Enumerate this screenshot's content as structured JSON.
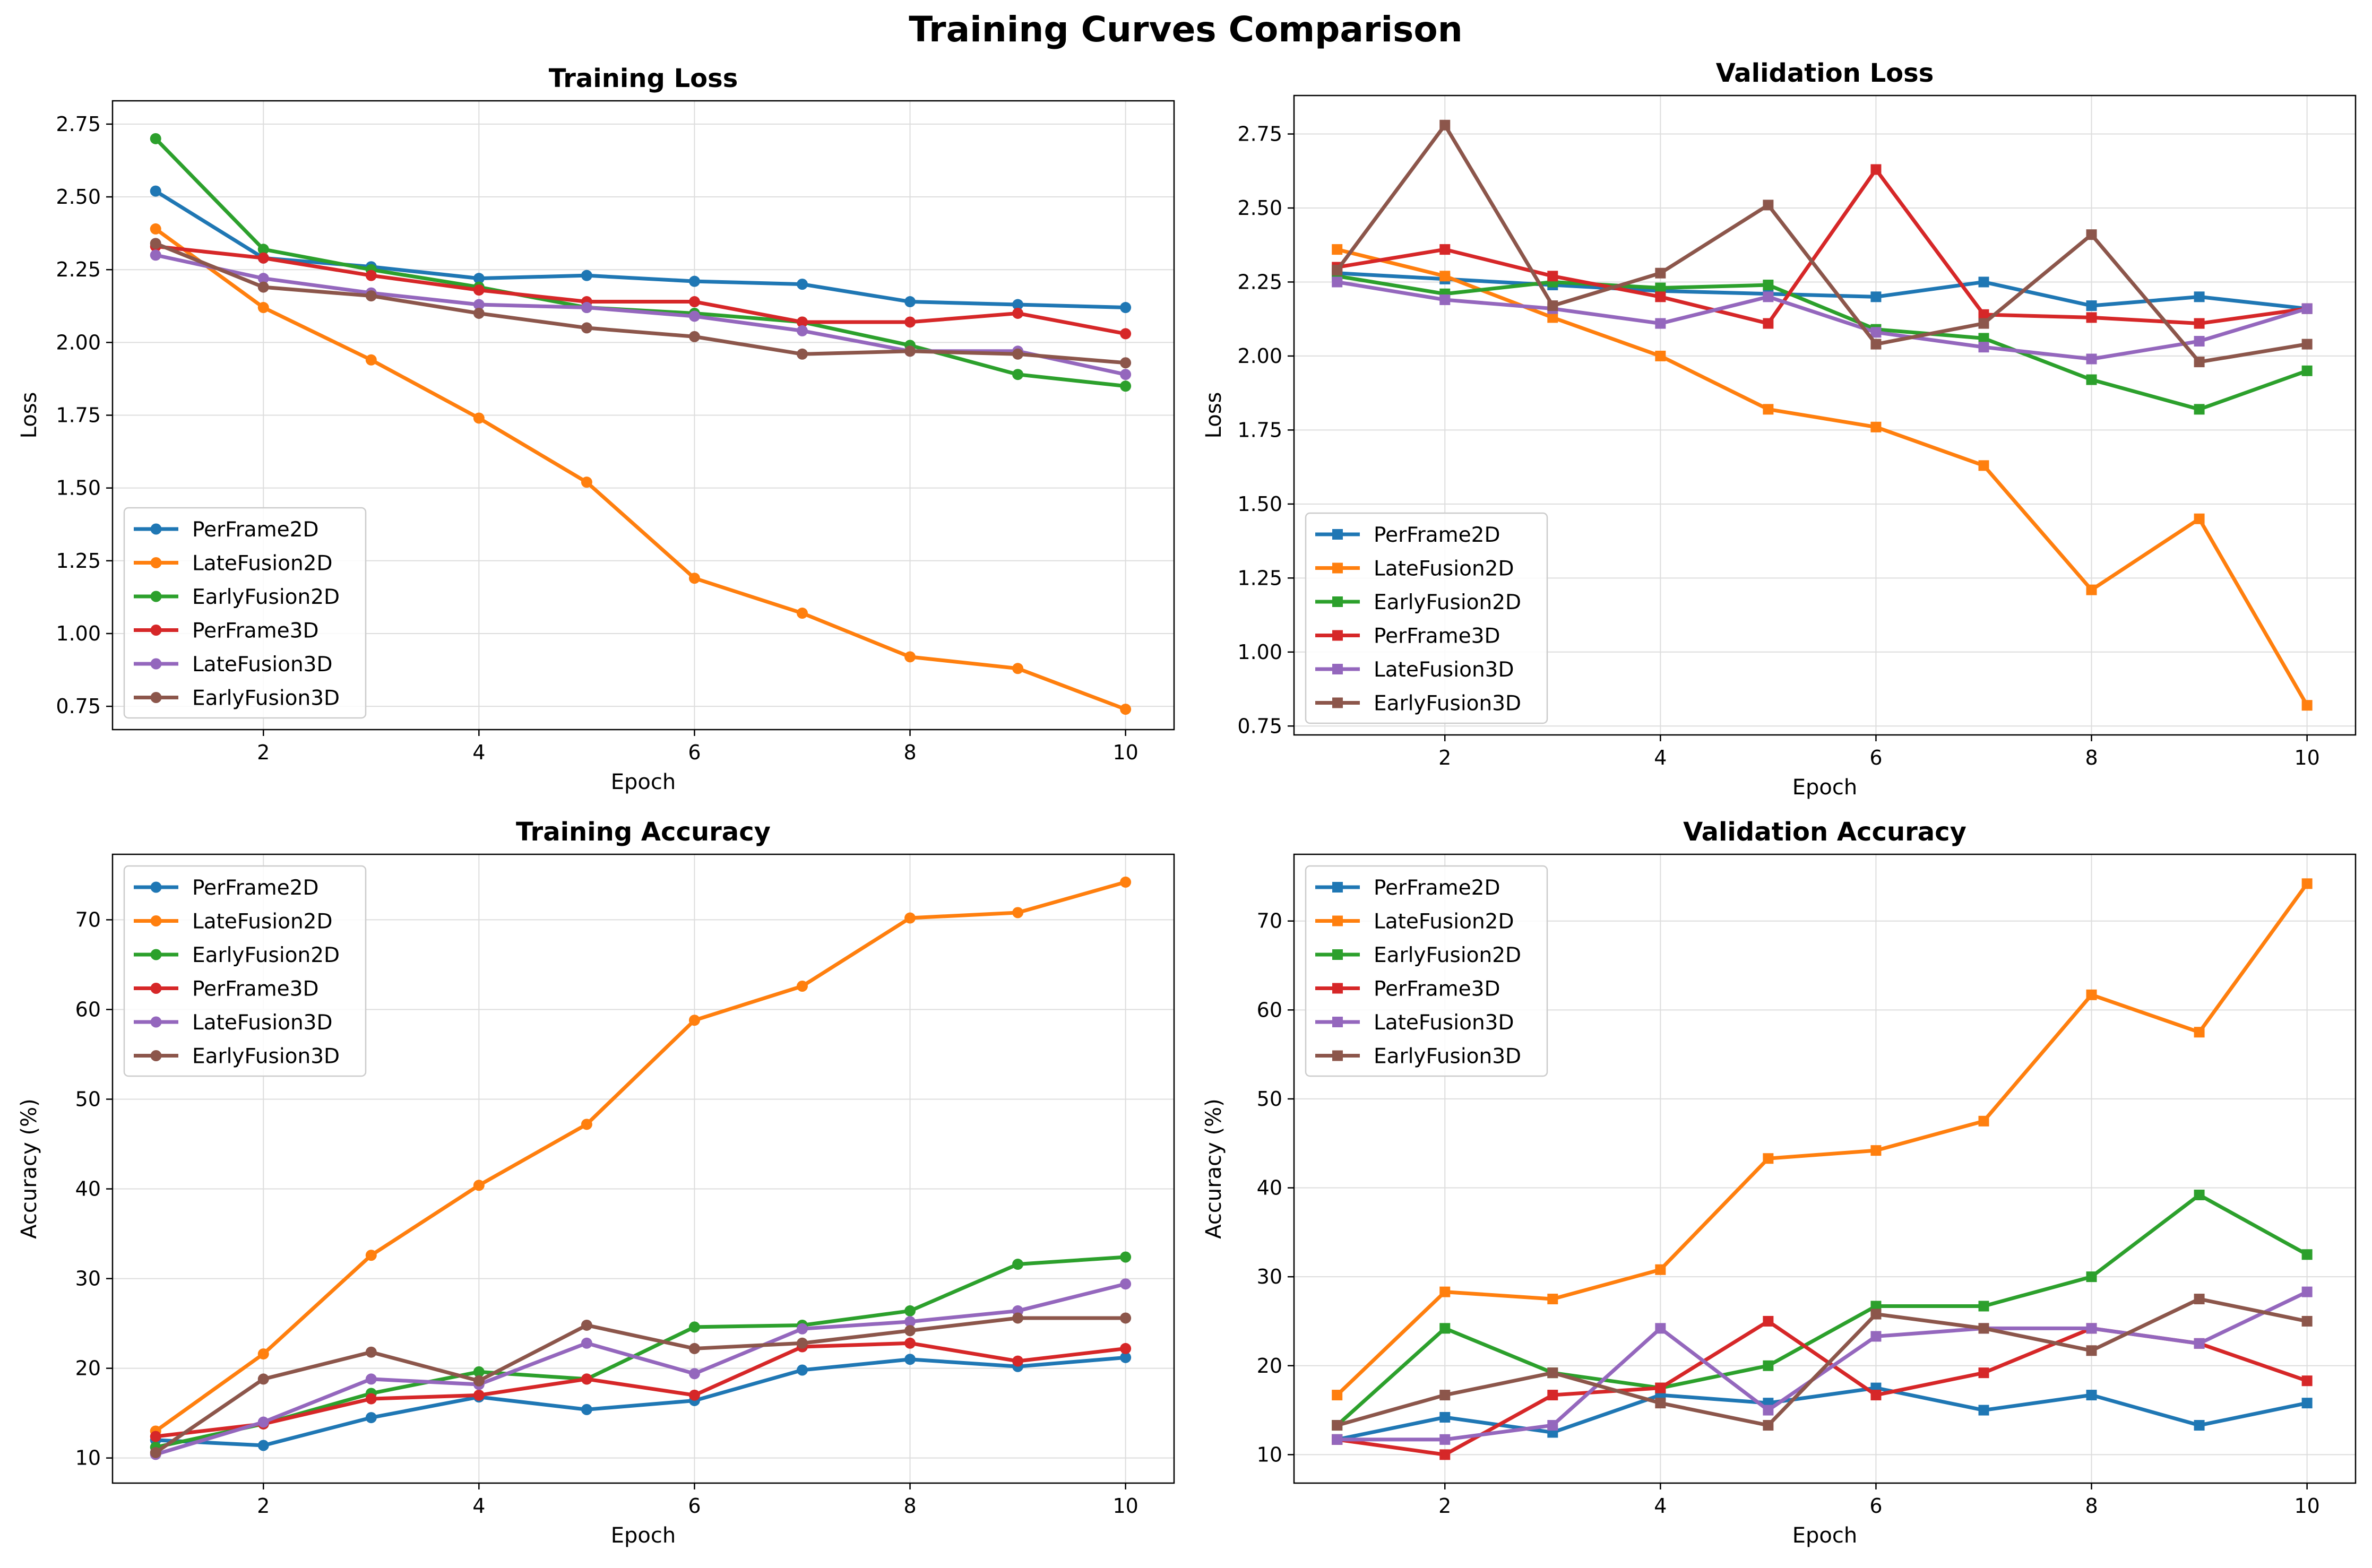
{
  "figure": {
    "title": "Training Curves Comparison"
  },
  "colors": {
    "PerFrame2D": "#1f77b4",
    "LateFusion2D": "#ff7f0e",
    "EarlyFusion2D": "#2ca02c",
    "PerFrame3D": "#d62728",
    "LateFusion3D": "#9467bd",
    "EarlyFusion3D": "#8c564b"
  },
  "chart_data": [
    {
      "type": "line",
      "title": "Training Loss",
      "xlabel": "Epoch",
      "ylabel": "Loss",
      "marker": "circle",
      "x": [
        1,
        2,
        3,
        4,
        5,
        6,
        7,
        8,
        9,
        10
      ],
      "xlim": [
        0.6,
        10.45
      ],
      "ylim": [
        0.67,
        2.83
      ],
      "xticks": [
        2,
        4,
        6,
        8,
        10
      ],
      "yticks": [
        0.75,
        1.0,
        1.25,
        1.5,
        1.75,
        2.0,
        2.25,
        2.5,
        2.75
      ],
      "grid": true,
      "legend": "lower left",
      "series": [
        {
          "name": "PerFrame2D",
          "values": [
            2.52,
            2.29,
            2.26,
            2.22,
            2.23,
            2.21,
            2.2,
            2.14,
            2.13,
            2.12
          ]
        },
        {
          "name": "LateFusion2D",
          "values": [
            2.39,
            2.12,
            1.94,
            1.74,
            1.52,
            1.19,
            1.07,
            0.92,
            0.88,
            0.74
          ]
        },
        {
          "name": "EarlyFusion2D",
          "values": [
            2.7,
            2.32,
            2.25,
            2.19,
            2.12,
            2.1,
            2.07,
            1.99,
            1.89,
            1.85
          ]
        },
        {
          "name": "PerFrame3D",
          "values": [
            2.33,
            2.29,
            2.23,
            2.18,
            2.14,
            2.14,
            2.07,
            2.07,
            2.1,
            2.03
          ]
        },
        {
          "name": "LateFusion3D",
          "values": [
            2.3,
            2.22,
            2.17,
            2.13,
            2.12,
            2.09,
            2.04,
            1.97,
            1.97,
            1.89
          ]
        },
        {
          "name": "EarlyFusion3D",
          "values": [
            2.34,
            2.19,
            2.16,
            2.1,
            2.05,
            2.02,
            1.96,
            1.97,
            1.96,
            1.93
          ]
        }
      ]
    },
    {
      "type": "line",
      "title": "Validation Loss",
      "xlabel": "Epoch",
      "ylabel": "Loss",
      "marker": "square",
      "x": [
        1,
        2,
        3,
        4,
        5,
        6,
        7,
        8,
        9,
        10
      ],
      "xlim": [
        0.6,
        10.45
      ],
      "ylim": [
        0.72,
        2.88
      ],
      "xticks": [
        2,
        4,
        6,
        8,
        10
      ],
      "yticks": [
        0.75,
        1.0,
        1.25,
        1.5,
        1.75,
        2.0,
        2.25,
        2.5,
        2.75
      ],
      "grid": true,
      "legend": "lower left",
      "series": [
        {
          "name": "PerFrame2D",
          "values": [
            2.28,
            2.26,
            2.24,
            2.22,
            2.21,
            2.2,
            2.25,
            2.17,
            2.2,
            2.16
          ]
        },
        {
          "name": "LateFusion2D",
          "values": [
            2.36,
            2.27,
            2.13,
            2.0,
            1.82,
            1.76,
            1.63,
            1.21,
            1.45,
            0.82
          ]
        },
        {
          "name": "EarlyFusion2D",
          "values": [
            2.27,
            2.21,
            2.25,
            2.23,
            2.24,
            2.09,
            2.06,
            1.92,
            1.82,
            1.95
          ]
        },
        {
          "name": "PerFrame3D",
          "values": [
            2.3,
            2.36,
            2.27,
            2.2,
            2.11,
            2.63,
            2.14,
            2.13,
            2.11,
            2.16
          ]
        },
        {
          "name": "LateFusion3D",
          "values": [
            2.25,
            2.19,
            2.16,
            2.11,
            2.2,
            2.08,
            2.03,
            1.99,
            2.05,
            2.16
          ]
        },
        {
          "name": "EarlyFusion3D",
          "values": [
            2.29,
            2.78,
            2.17,
            2.28,
            2.51,
            2.04,
            2.11,
            2.41,
            1.98,
            2.04
          ]
        }
      ]
    },
    {
      "type": "line",
      "title": "Training Accuracy",
      "xlabel": "Epoch",
      "ylabel": "Accuracy (%)",
      "marker": "circle",
      "x": [
        1,
        2,
        3,
        4,
        5,
        6,
        7,
        8,
        9,
        10
      ],
      "xlim": [
        0.6,
        10.45
      ],
      "ylim": [
        7.2,
        77.3
      ],
      "xticks": [
        2,
        4,
        6,
        8,
        10
      ],
      "yticks": [
        10,
        20,
        30,
        40,
        50,
        60,
        70
      ],
      "grid": true,
      "legend": "upper left",
      "series": [
        {
          "name": "PerFrame2D",
          "values": [
            12.0,
            11.4,
            14.5,
            16.8,
            15.4,
            16.4,
            19.8,
            21.0,
            20.2,
            21.2
          ]
        },
        {
          "name": "LateFusion2D",
          "values": [
            13.0,
            21.6,
            32.6,
            40.4,
            47.2,
            58.8,
            62.6,
            70.2,
            70.8,
            74.2
          ]
        },
        {
          "name": "EarlyFusion2D",
          "values": [
            11.2,
            13.8,
            17.2,
            19.6,
            18.8,
            24.6,
            24.8,
            26.4,
            31.6,
            32.4
          ]
        },
        {
          "name": "PerFrame3D",
          "values": [
            12.4,
            13.8,
            16.6,
            17.0,
            18.8,
            17.0,
            22.4,
            22.8,
            20.8,
            22.2
          ]
        },
        {
          "name": "LateFusion3D",
          "values": [
            10.4,
            14.0,
            18.8,
            18.2,
            22.8,
            19.4,
            24.4,
            25.2,
            26.4,
            29.4
          ]
        },
        {
          "name": "EarlyFusion3D",
          "values": [
            10.6,
            18.8,
            21.8,
            18.6,
            24.8,
            22.2,
            22.8,
            24.2,
            25.6,
            25.6
          ]
        }
      ]
    },
    {
      "type": "line",
      "title": "Validation Accuracy",
      "xlabel": "Epoch",
      "ylabel": "Accuracy (%)",
      "marker": "square",
      "x": [
        1,
        2,
        3,
        4,
        5,
        6,
        7,
        8,
        9,
        10
      ],
      "xlim": [
        0.6,
        10.45
      ],
      "ylim": [
        6.8,
        77.5
      ],
      "xticks": [
        2,
        4,
        6,
        8,
        10
      ],
      "yticks": [
        10,
        20,
        30,
        40,
        50,
        60,
        70
      ],
      "grid": true,
      "legend": "upper left",
      "series": [
        {
          "name": "PerFrame2D",
          "values": [
            11.7,
            14.2,
            12.5,
            16.7,
            15.8,
            17.5,
            15.0,
            16.7,
            13.3,
            15.8
          ]
        },
        {
          "name": "LateFusion2D",
          "values": [
            16.7,
            28.3,
            27.5,
            30.8,
            43.3,
            44.2,
            47.5,
            61.7,
            57.5,
            74.2
          ]
        },
        {
          "name": "EarlyFusion2D",
          "values": [
            13.3,
            24.2,
            19.2,
            17.5,
            20.0,
            26.7,
            26.7,
            30.0,
            39.2,
            32.5
          ]
        },
        {
          "name": "PerFrame3D",
          "values": [
            11.7,
            10.0,
            16.7,
            17.5,
            25.0,
            16.7,
            19.2,
            24.2,
            22.5,
            18.3
          ]
        },
        {
          "name": "LateFusion3D",
          "values": [
            11.7,
            11.7,
            13.3,
            24.2,
            15.0,
            23.3,
            24.2,
            24.2,
            22.5,
            28.3
          ]
        },
        {
          "name": "EarlyFusion3D",
          "values": [
            13.3,
            16.7,
            19.2,
            15.8,
            13.3,
            25.8,
            24.2,
            21.7,
            27.5,
            25.0
          ]
        }
      ]
    }
  ]
}
